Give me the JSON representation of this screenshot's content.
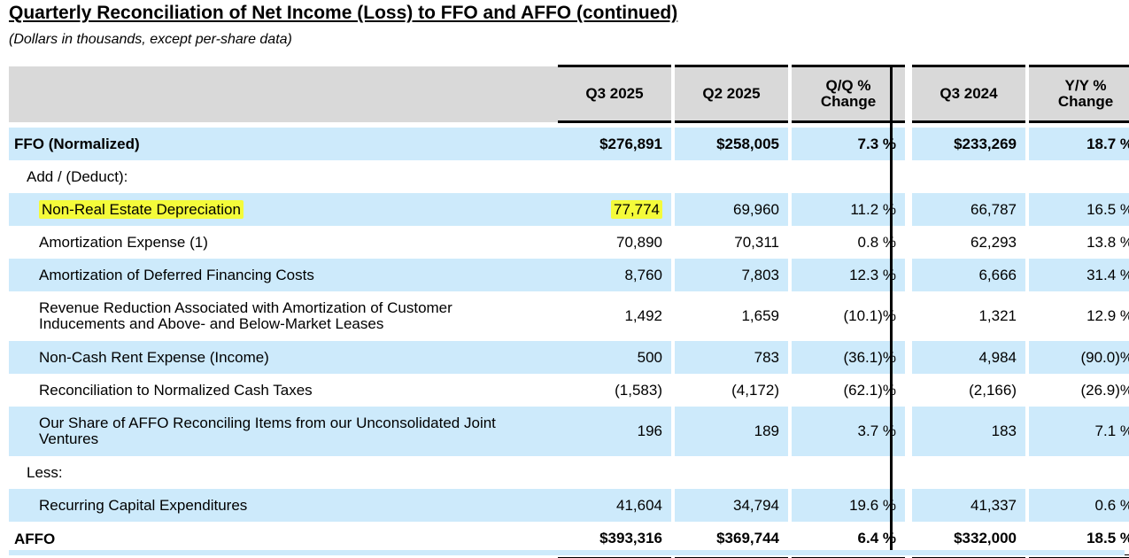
{
  "title": "Quarterly Reconciliation of Net Income (Loss) to FFO and AFFO (continued)",
  "subtitle": "(Dollars in thousands, except per-share data)",
  "columns": {
    "q3_2025": "Q3 2025",
    "q2_2025": "Q2 2025",
    "qq_line1": "Q/Q %",
    "qq_line2": "Change",
    "q3_2024": "Q3 2024",
    "yy_line1": "Y/Y %",
    "yy_line2": "Change"
  },
  "rows": [
    {
      "label": "FFO (Normalized)",
      "q3_2025": "$276,891",
      "q2_2025": "$258,005",
      "qq": "7.3 %",
      "q3_2024": "$233,269",
      "yy": "18.7 %"
    },
    {
      "label": "Add / (Deduct):"
    },
    {
      "label": "Non-Real Estate Depreciation",
      "q3_2025": "77,774",
      "q2_2025": "69,960",
      "qq": "11.2 %",
      "q3_2024": "66,787",
      "yy": "16.5 %"
    },
    {
      "label": "Amortization Expense (1)",
      "q3_2025": "70,890",
      "q2_2025": "70,311",
      "qq": "0.8 %",
      "q3_2024": "62,293",
      "yy": "13.8 %"
    },
    {
      "label": "Amortization of Deferred Financing Costs",
      "q3_2025": "8,760",
      "q2_2025": "7,803",
      "qq": "12.3 %",
      "q3_2024": "6,666",
      "yy": "31.4 %"
    },
    {
      "label_line1": "Revenue Reduction Associated with Amortization of Customer",
      "label_line2": "Inducements and Above- and Below-Market Leases",
      "q3_2025": "1,492",
      "q2_2025": "1,659",
      "qq": "(10.1)%",
      "q3_2024": "1,321",
      "yy": "12.9 %"
    },
    {
      "label": "Non-Cash Rent Expense (Income)",
      "q3_2025": "500",
      "q2_2025": "783",
      "qq": "(36.1)%",
      "q3_2024": "4,984",
      "yy": "(90.0)%"
    },
    {
      "label": "Reconciliation to Normalized Cash Taxes",
      "q3_2025": "(1,583)",
      "q2_2025": "(4,172)",
      "qq": "(62.1)%",
      "q3_2024": "(2,166)",
      "yy": "(26.9)%"
    },
    {
      "label_line1": "Our Share of AFFO Reconciling Items from our Unconsolidated Joint",
      "label_line2": "Ventures",
      "q3_2025": "196",
      "q2_2025": "189",
      "qq": "3.7 %",
      "q3_2024": "183",
      "yy": "7.1 %"
    },
    {
      "label": "Less:"
    },
    {
      "label": "Recurring Capital Expenditures",
      "q3_2025": "41,604",
      "q2_2025": "34,794",
      "qq": "19.6 %",
      "q3_2024": "41,337",
      "yy": "0.6 %"
    },
    {
      "label": "AFFO",
      "q3_2025": "$393,316",
      "q2_2025": "$369,744",
      "qq": "6.4 %",
      "q3_2024": "$332,000",
      "yy": "18.5 %"
    }
  ],
  "colors": {
    "row_band": "#cdeafb",
    "header_band": "#d9d9d9",
    "highlight": "#f4fb3a"
  }
}
